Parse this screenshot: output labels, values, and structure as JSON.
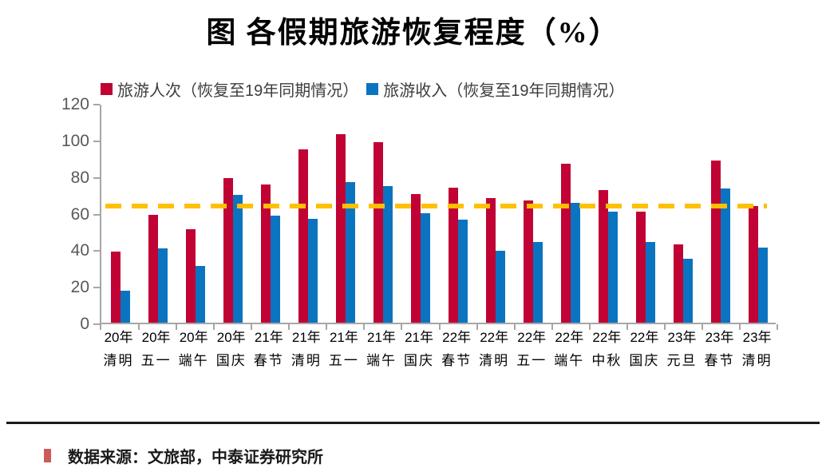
{
  "title": "图 各假期旅游恢复程度（%）",
  "legend": [
    {
      "label": "旅游人次（恢复至19年同期情况）",
      "color": "#C00334"
    },
    {
      "label": "旅游收入（恢复至19年同期情况）",
      "color": "#0B74C0"
    }
  ],
  "source": "数据来源：文旅部，中泰证券研究所",
  "colors": {
    "visitors_red": "#C00334",
    "revenue_blue": "#0B74C0",
    "reference_gold": "#FFC000",
    "axis_gray": "#A6A6A6",
    "source_bullet_red": "#CD5A5C"
  },
  "chart_data": {
    "type": "bar",
    "title": "图 各假期旅游恢复程度（%）",
    "categories": [
      [
        "20年",
        "清明"
      ],
      [
        "20年",
        "五一"
      ],
      [
        "20年",
        "端午"
      ],
      [
        "20年",
        "国庆"
      ],
      [
        "21年",
        "春节"
      ],
      [
        "21年",
        "清明"
      ],
      [
        "21年",
        "五一"
      ],
      [
        "21年",
        "端午"
      ],
      [
        "21年",
        "国庆"
      ],
      [
        "22年",
        "春节"
      ],
      [
        "22年",
        "清明"
      ],
      [
        "22年",
        "五一"
      ],
      [
        "22年",
        "端午"
      ],
      [
        "22年",
        "中秋"
      ],
      [
        "22年",
        "国庆"
      ],
      [
        "23年",
        "元旦"
      ],
      [
        "23年",
        "春节"
      ],
      [
        "23年",
        "清明"
      ]
    ],
    "series": [
      {
        "name": "旅游人次（恢复至19年同期情况）",
        "color": "#C00334",
        "values": [
          38.8,
          59.0,
          50.9,
          79.0,
          75.3,
          94.5,
          103.2,
          98.7,
          70.1,
          73.9,
          68.0,
          66.8,
          86.8,
          72.6,
          60.7,
          42.8,
          88.6,
          63.8
        ]
      },
      {
        "name": "旅游收入（恢复至19年同期情况）",
        "color": "#0B74C0",
        "values": [
          17.3,
          40.7,
          31.2,
          69.9,
          58.6,
          56.7,
          77.0,
          74.8,
          59.9,
          56.3,
          39.2,
          44.0,
          65.6,
          60.6,
          44.2,
          35.1,
          73.1,
          41.0
        ]
      }
    ],
    "y_ticks": [
      0,
      20,
      40,
      60,
      80,
      100,
      120
    ],
    "ylim": [
      0,
      120
    ],
    "xlabel": "",
    "ylabel": "",
    "grid": false,
    "legend_position": "top",
    "reference_line": {
      "value": 63.5,
      "color": "#FFC000",
      "style": "dashed"
    }
  }
}
